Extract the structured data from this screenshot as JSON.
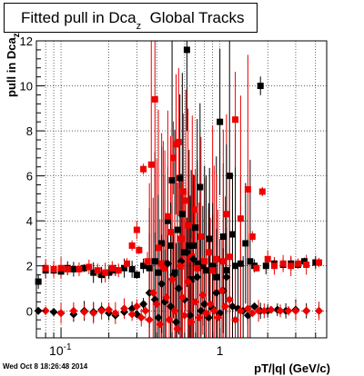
{
  "chart_data": {
    "type": "scatter",
    "title": "Fitted pull in Dca",
    "title_subscript": "z",
    "title_suffix": "Global Tracks",
    "xlabel": "pT/|q| (GeV/c)",
    "ylabel": "pull in Dca",
    "ylabel_subscript": "z",
    "x_scale": "log",
    "xlim": [
      0.07,
      4.7
    ],
    "ylim": [
      -1.2,
      12
    ],
    "x_tick_labels": [
      "10^-1",
      "1"
    ],
    "y_tick_labels": [
      "0",
      "2",
      "4",
      "6",
      "8",
      "10",
      "12"
    ],
    "grid": true,
    "series_colors": {
      "black": "#000000",
      "red": "#ee0000"
    },
    "series": [
      {
        "color": "black",
        "marker": "square",
        "role": "sigma",
        "points": [
          [
            0.072,
            1.3
          ],
          [
            0.08,
            1.8
          ],
          [
            0.09,
            1.8
          ],
          [
            0.1,
            1.75
          ],
          [
            0.11,
            1.9
          ],
          [
            0.12,
            1.85
          ],
          [
            0.14,
            1.9
          ],
          [
            0.16,
            1.7
          ],
          [
            0.18,
            1.6
          ],
          [
            0.2,
            1.7
          ],
          [
            0.22,
            1.8
          ],
          [
            0.25,
            1.9
          ],
          [
            0.28,
            1.85
          ],
          [
            0.3,
            1.6
          ],
          [
            0.33,
            2.0
          ],
          [
            0.36,
            1.9
          ],
          [
            0.39,
            2.2
          ],
          [
            0.41,
            1.7
          ],
          [
            0.43,
            3.0
          ],
          [
            0.45,
            2.1
          ],
          [
            0.47,
            4.0
          ],
          [
            0.49,
            2.9
          ],
          [
            0.5,
            5.8
          ],
          [
            0.52,
            1.7
          ],
          [
            0.54,
            3.6
          ],
          [
            0.56,
            5.9
          ],
          [
            0.58,
            4.3
          ],
          [
            0.6,
            2.6
          ],
          [
            0.62,
            11.6
          ],
          [
            0.64,
            2.9
          ],
          [
            0.66,
            1.4
          ],
          [
            0.68,
            2.9
          ],
          [
            0.7,
            3.7
          ],
          [
            0.72,
            2.1
          ],
          [
            0.75,
            5.5
          ],
          [
            0.78,
            2.0
          ],
          [
            0.82,
            1.8
          ],
          [
            0.86,
            3.2
          ],
          [
            0.9,
            2.0
          ],
          [
            0.95,
            1.5
          ],
          [
            1.0,
            8.4
          ],
          [
            1.05,
            3.3
          ],
          [
            1.1,
            1.8
          ],
          [
            1.15,
            6.0
          ],
          [
            1.2,
            3.4
          ],
          [
            1.25,
            2.0
          ],
          [
            1.35,
            2.1
          ],
          [
            1.45,
            3.0
          ],
          [
            1.55,
            2.2
          ],
          [
            1.65,
            2.0
          ],
          [
            1.8,
            10.0
          ],
          [
            1.95,
            2.0
          ],
          [
            2.2,
            2.1
          ],
          [
            2.5,
            2.05
          ],
          [
            2.8,
            2.1
          ],
          [
            3.1,
            2.05
          ],
          [
            3.4,
            2.2
          ],
          [
            4.0,
            2.15
          ]
        ]
      },
      {
        "color": "red",
        "marker": "square",
        "role": "sigma",
        "points": [
          [
            0.08,
            1.9
          ],
          [
            0.09,
            1.85
          ],
          [
            0.1,
            1.9
          ],
          [
            0.11,
            1.85
          ],
          [
            0.13,
            1.85
          ],
          [
            0.15,
            1.95
          ],
          [
            0.17,
            1.8
          ],
          [
            0.19,
            1.7
          ],
          [
            0.21,
            1.9
          ],
          [
            0.23,
            1.8
          ],
          [
            0.26,
            2.1
          ],
          [
            0.28,
            2.9
          ],
          [
            0.3,
            3.6
          ],
          [
            0.31,
            2.7
          ],
          [
            0.33,
            6.3
          ],
          [
            0.35,
            2.2
          ],
          [
            0.37,
            6.5
          ],
          [
            0.39,
            9.4
          ],
          [
            0.41,
            2.8
          ],
          [
            0.43,
            2.1
          ],
          [
            0.45,
            1.9
          ],
          [
            0.47,
            4.2
          ],
          [
            0.49,
            3.5
          ],
          [
            0.51,
            6.8
          ],
          [
            0.53,
            7.4
          ],
          [
            0.55,
            7.5
          ],
          [
            0.57,
            3.2
          ],
          [
            0.59,
            5.3
          ],
          [
            0.61,
            4.9
          ],
          [
            0.63,
            3.8
          ],
          [
            0.65,
            2.3
          ],
          [
            0.67,
            2.4
          ],
          [
            0.69,
            4.5
          ],
          [
            0.72,
            1.9
          ],
          [
            0.76,
            3.3
          ],
          [
            0.8,
            2.2
          ],
          [
            0.85,
            2.6
          ],
          [
            0.9,
            1.8
          ],
          [
            0.95,
            2.3
          ],
          [
            1.05,
            2.2
          ],
          [
            1.1,
            4.3
          ],
          [
            1.15,
            2.4
          ],
          [
            1.25,
            8.5
          ],
          [
            1.35,
            4.1
          ],
          [
            1.5,
            5.4
          ],
          [
            1.6,
            3.3
          ],
          [
            1.7,
            1.9
          ],
          [
            1.85,
            5.3
          ],
          [
            2.0,
            2.3
          ],
          [
            2.2,
            2.0
          ],
          [
            2.5,
            2.1
          ],
          [
            2.8,
            2.0
          ],
          [
            3.1,
            2.1
          ],
          [
            3.5,
            2.05
          ],
          [
            4.2,
            2.15
          ]
        ]
      },
      {
        "color": "black",
        "marker": "diamond",
        "role": "mean",
        "points": [
          [
            0.072,
            0.0
          ],
          [
            0.09,
            -0.05
          ],
          [
            0.1,
            -0.1
          ],
          [
            0.12,
            -0.15
          ],
          [
            0.14,
            0.0
          ],
          [
            0.16,
            -0.05
          ],
          [
            0.18,
            0.05
          ],
          [
            0.2,
            -0.1
          ],
          [
            0.22,
            -0.2
          ],
          [
            0.25,
            -0.05
          ],
          [
            0.28,
            0.1
          ],
          [
            0.3,
            -0.15
          ],
          [
            0.33,
            0.3
          ],
          [
            0.36,
            0.8
          ],
          [
            0.39,
            0.5
          ],
          [
            0.41,
            -0.3
          ],
          [
            0.43,
            1.2
          ],
          [
            0.45,
            0.4
          ],
          [
            0.47,
            2.1
          ],
          [
            0.49,
            0.2
          ],
          [
            0.51,
            1.6
          ],
          [
            0.53,
            -0.5
          ],
          [
            0.55,
            1.0
          ],
          [
            0.57,
            2.2
          ],
          [
            0.6,
            0.5
          ],
          [
            0.62,
            2.6
          ],
          [
            0.65,
            -0.2
          ],
          [
            0.68,
            2.3
          ],
          [
            0.72,
            1.5
          ],
          [
            0.76,
            0.0
          ],
          [
            0.8,
            0.3
          ],
          [
            0.85,
            -0.3
          ],
          [
            0.9,
            0.1
          ],
          [
            0.95,
            0.8
          ],
          [
            1.0,
            -0.1
          ],
          [
            1.05,
            0.9
          ],
          [
            1.1,
            1.5
          ],
          [
            1.2,
            0.2
          ],
          [
            1.3,
            0.1
          ],
          [
            1.4,
            0.0
          ],
          [
            1.5,
            -0.2
          ],
          [
            1.65,
            0.2
          ],
          [
            1.8,
            0.0
          ],
          [
            2.0,
            0.0
          ],
          [
            2.3,
            0.05
          ],
          [
            2.6,
            0.0
          ],
          [
            3.0,
            0.05
          ],
          [
            3.5,
            0.0
          ],
          [
            4.2,
            0.0
          ]
        ]
      },
      {
        "color": "red",
        "marker": "diamond",
        "role": "mean",
        "points": [
          [
            0.08,
            0.0
          ],
          [
            0.1,
            -0.1
          ],
          [
            0.12,
            0.0
          ],
          [
            0.14,
            -0.05
          ],
          [
            0.16,
            -0.1
          ],
          [
            0.18,
            0.0
          ],
          [
            0.2,
            0.05
          ],
          [
            0.22,
            -0.1
          ],
          [
            0.25,
            0.1
          ],
          [
            0.28,
            -0.15
          ],
          [
            0.3,
            0.2
          ],
          [
            0.32,
            -0.3
          ],
          [
            0.34,
            0.0
          ],
          [
            0.36,
            -0.4
          ],
          [
            0.38,
            0.8
          ],
          [
            0.4,
            0.3
          ],
          [
            0.42,
            -0.6
          ],
          [
            0.44,
            1.9
          ],
          [
            0.46,
            0.6
          ],
          [
            0.48,
            -0.4
          ],
          [
            0.5,
            1.4
          ],
          [
            0.52,
            0.0
          ],
          [
            0.54,
            -0.8
          ],
          [
            0.56,
            2.0
          ],
          [
            0.58,
            0.6
          ],
          [
            0.6,
            -0.2
          ],
          [
            0.63,
            1.3
          ],
          [
            0.66,
            -0.5
          ],
          [
            0.7,
            0.4
          ],
          [
            0.74,
            -0.3
          ],
          [
            0.78,
            0.7
          ],
          [
            0.82,
            -0.1
          ],
          [
            0.87,
            0.3
          ],
          [
            0.92,
            0.0
          ],
          [
            0.97,
            -0.3
          ],
          [
            1.03,
            0.9
          ],
          [
            1.08,
            0.2
          ],
          [
            1.15,
            0.5
          ],
          [
            1.25,
            -0.4
          ],
          [
            1.35,
            0.0
          ],
          [
            1.5,
            0.1
          ],
          [
            1.6,
            -0.1
          ],
          [
            1.75,
            0.0
          ],
          [
            1.9,
            0.0
          ],
          [
            2.1,
            0.05
          ],
          [
            2.4,
            0.0
          ],
          [
            2.7,
            0.0
          ],
          [
            3.0,
            0.0
          ],
          [
            3.5,
            0.0
          ],
          [
            4.2,
            0.0
          ]
        ]
      }
    ]
  },
  "footer": {
    "datetime": "Wed Oct  8 18:26:48 2014"
  }
}
